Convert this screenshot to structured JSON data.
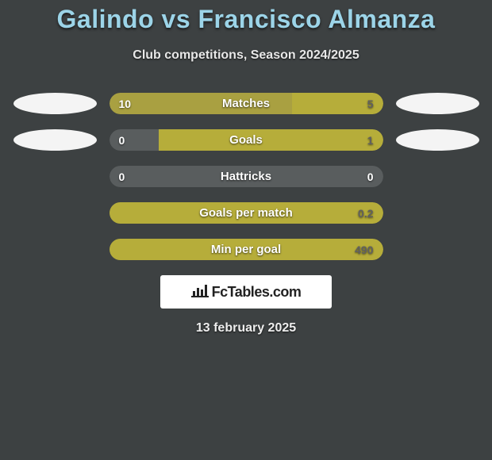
{
  "title": "Galindo vs Francisco Almanza",
  "subtitle": "Club competitions, Season 2024/2025",
  "date": "13 february 2025",
  "logo_text": "FcTables.com",
  "colors": {
    "title": "#9cd4e8",
    "text": "#e8e8e8",
    "background": "#3d4142",
    "left_player": "#a9a041",
    "right_player": "#b6ad3a",
    "neutral": "#595d5e",
    "ellipse": "#f4f4f4",
    "logo_bg": "#ffffff",
    "logo_text": "#222222"
  },
  "text_color_on_bar": {
    "on_left": "#ffffff",
    "on_right": "#606060",
    "on_neutral": "#ffffff"
  },
  "rows": [
    {
      "label": "Matches",
      "left_value": "10",
      "right_value": "5",
      "left_pct": 66.7,
      "right_pct": 33.3,
      "left_color": "#a9a041",
      "right_color": "#b6ad3a",
      "left_val_color": "#ffffff",
      "right_val_color": "#606060",
      "show_ellipses": true
    },
    {
      "label": "Goals",
      "left_value": "0",
      "right_value": "1",
      "left_pct": 18,
      "right_pct": 82,
      "left_color": "#595d5e",
      "right_color": "#b6ad3a",
      "left_val_color": "#ffffff",
      "right_val_color": "#606060",
      "show_ellipses": true
    },
    {
      "label": "Hattricks",
      "left_value": "0",
      "right_value": "0",
      "left_pct": 50,
      "right_pct": 50,
      "left_color": "#595d5e",
      "right_color": "#595d5e",
      "left_val_color": "#ffffff",
      "right_val_color": "#ffffff",
      "show_ellipses": false
    },
    {
      "label": "Goals per match",
      "left_value": "",
      "right_value": "0.2",
      "left_pct": 0,
      "right_pct": 100,
      "left_color": "#595d5e",
      "right_color": "#b6ad3a",
      "left_val_color": "#ffffff",
      "right_val_color": "#606060",
      "show_ellipses": false
    },
    {
      "label": "Min per goal",
      "left_value": "",
      "right_value": "490",
      "left_pct": 0,
      "right_pct": 100,
      "left_color": "#595d5e",
      "right_color": "#b6ad3a",
      "left_val_color": "#ffffff",
      "right_val_color": "#606060",
      "show_ellipses": false
    }
  ]
}
